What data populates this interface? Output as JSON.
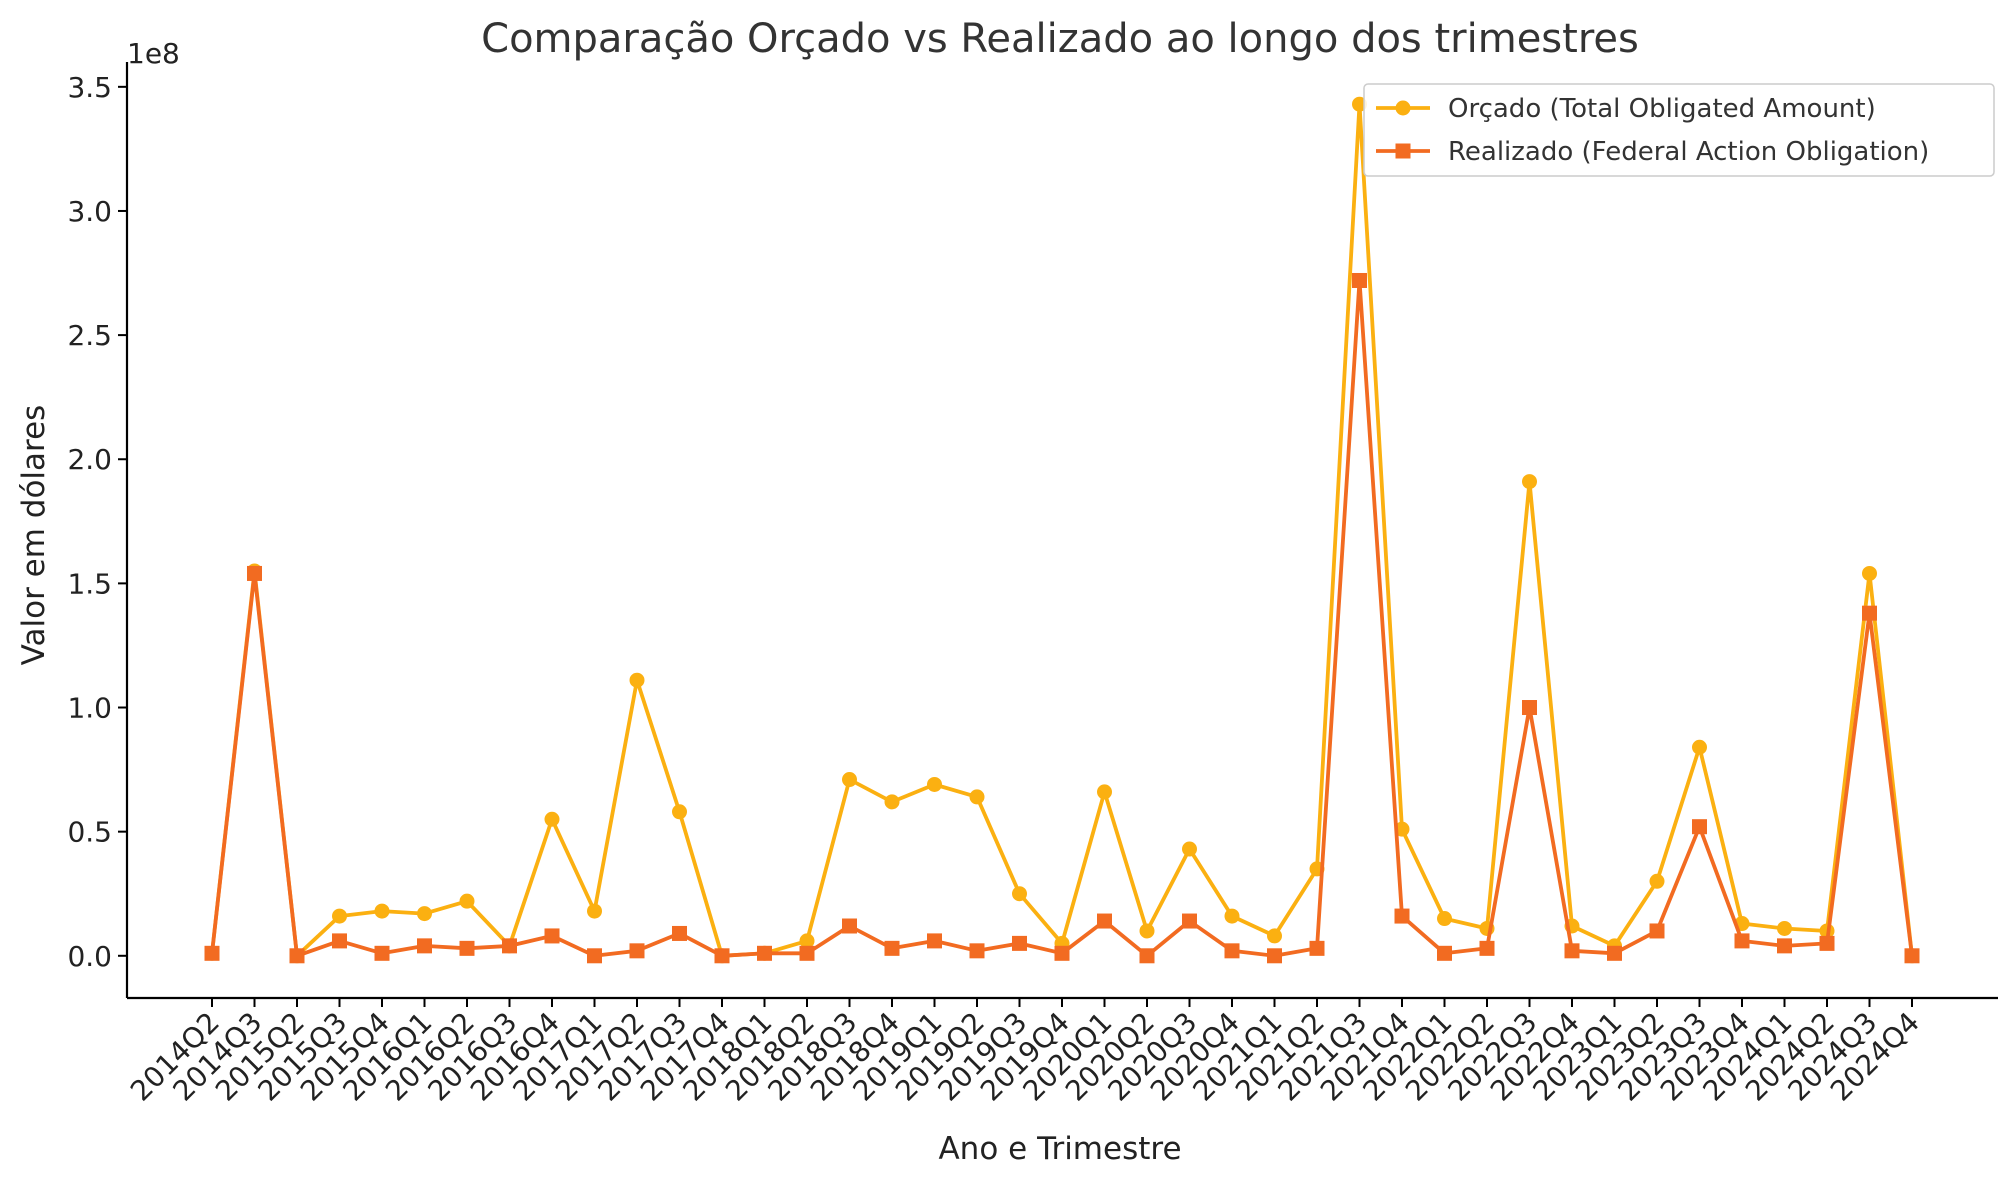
{
  "chart_data": {
    "type": "line",
    "title": "Comparação Orçado vs Realizado ao longo dos trimestres",
    "xlabel": "Ano e Trimestre",
    "ylabel": "Valor em dólares",
    "y_offset_label": "1e8",
    "y_scale": 100000000,
    "ylim": [
      -0.17,
      3.6
    ],
    "y_ticks": [
      0.0,
      0.5,
      1.0,
      1.5,
      2.0,
      2.5,
      3.0,
      3.5
    ],
    "y_tick_labels": [
      "0.0",
      "0.5",
      "1.0",
      "1.5",
      "2.0",
      "2.5",
      "3.0",
      "3.5"
    ],
    "grid": false,
    "legend_position": "top-right",
    "categories": [
      "2014Q2",
      "2014Q3",
      "2015Q2",
      "2015Q3",
      "2015Q4",
      "2016Q1",
      "2016Q2",
      "2016Q3",
      "2016Q4",
      "2017Q1",
      "2017Q2",
      "2017Q3",
      "2017Q4",
      "2018Q1",
      "2018Q2",
      "2018Q3",
      "2018Q4",
      "2019Q1",
      "2019Q2",
      "2019Q3",
      "2019Q4",
      "2020Q1",
      "2020Q2",
      "2020Q3",
      "2020Q4",
      "2021Q1",
      "2021Q2",
      "2021Q3",
      "2021Q4",
      "2022Q1",
      "2022Q2",
      "2022Q3",
      "2022Q4",
      "2023Q1",
      "2023Q2",
      "2023Q3",
      "2023Q4",
      "2024Q1",
      "2024Q2",
      "2024Q3",
      "2024Q4"
    ],
    "series": [
      {
        "name": "Orçado (Total Obligated Amount)",
        "color": "#FBB011",
        "marker": "circle",
        "values": [
          0.01,
          1.55,
          0.0,
          0.16,
          0.18,
          0.17,
          0.22,
          0.04,
          0.55,
          0.18,
          1.11,
          0.58,
          0.0,
          0.01,
          0.06,
          0.71,
          0.62,
          0.69,
          0.64,
          0.25,
          0.05,
          0.66,
          0.1,
          0.43,
          0.16,
          0.08,
          0.35,
          3.43,
          0.51,
          0.15,
          0.11,
          1.91,
          0.12,
          0.04,
          0.3,
          0.84,
          0.13,
          0.11,
          0.1,
          1.54,
          0.0
        ]
      },
      {
        "name": "Realizado (Federal Action Obligation)",
        "color": "#F26B21",
        "marker": "square",
        "values": [
          0.01,
          1.54,
          0.0,
          0.06,
          0.01,
          0.04,
          0.03,
          0.04,
          0.08,
          0.0,
          0.02,
          0.09,
          0.0,
          0.01,
          0.01,
          0.12,
          0.03,
          0.06,
          0.02,
          0.05,
          0.01,
          0.14,
          0.0,
          0.14,
          0.02,
          0.0,
          0.03,
          2.72,
          0.16,
          0.01,
          0.03,
          1.0,
          0.02,
          0.01,
          0.1,
          0.52,
          0.06,
          0.04,
          0.05,
          1.38,
          0.0
        ]
      }
    ]
  }
}
